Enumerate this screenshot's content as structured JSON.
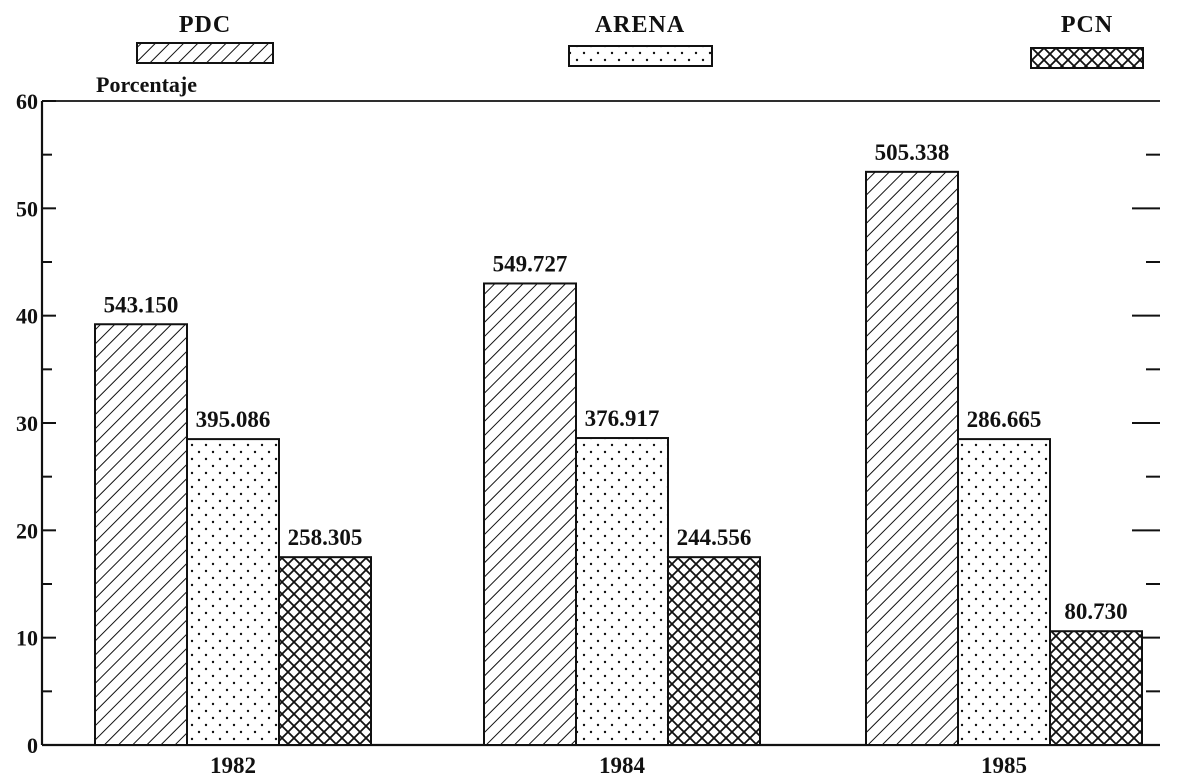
{
  "chart_data": {
    "type": "bar",
    "ylabel": "Porcentaje",
    "ylim": [
      0,
      60
    ],
    "yticks": [
      0,
      10,
      20,
      30,
      40,
      50,
      60
    ],
    "grid": false,
    "legend_placement": "top",
    "categories": [
      "1982",
      "1984",
      "1985"
    ],
    "series": [
      {
        "name": "PDC",
        "pattern": "diagonal-hatch",
        "values": [
          39.2,
          43.0,
          53.4
        ],
        "labels": [
          "543.150",
          "549.727",
          "505.338"
        ]
      },
      {
        "name": "ARENA",
        "pattern": "dots",
        "values": [
          28.5,
          28.6,
          28.5
        ],
        "labels": [
          "395.086",
          "376.917",
          "286.665"
        ]
      },
      {
        "name": "PCN",
        "pattern": "cross-hatch",
        "values": [
          17.5,
          17.5,
          10.6
        ],
        "labels": [
          "258.305",
          "244.556",
          "80.730"
        ]
      }
    ],
    "colors": {
      "ink": "#111111",
      "background": "#ffffff"
    }
  }
}
